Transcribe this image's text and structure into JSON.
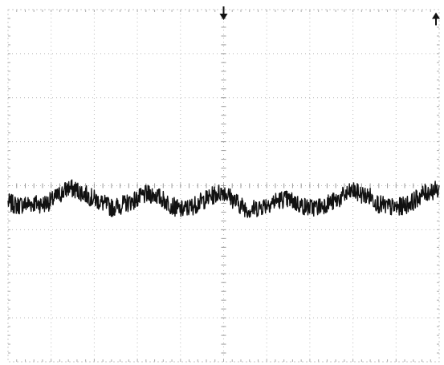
{
  "chart_data": {
    "type": "line",
    "title": "",
    "xlabel": "",
    "ylabel": "",
    "grid": true,
    "grid_divisions": {
      "x": 10,
      "y": 8
    },
    "minor_ticks_per_division": 5,
    "xlim": [
      0,
      10
    ],
    "ylim": [
      -4,
      4
    ],
    "markers": [
      {
        "kind": "trigger-position",
        "shape": "down-arrow",
        "x": 5.0
      },
      {
        "kind": "trigger-level",
        "shape": "up-arrow",
        "edge": "right",
        "y": 3.9
      }
    ],
    "series": [
      {
        "values_x": [
          0.0,
          0.2,
          0.4,
          0.6,
          0.8,
          1.0,
          1.2,
          1.4,
          1.6,
          1.8,
          2.0,
          2.2,
          2.4,
          2.6,
          2.8,
          3.0,
          3.2,
          3.4,
          3.6,
          3.8,
          4.0,
          4.2,
          4.4,
          4.6,
          4.8,
          5.0,
          5.2,
          5.4,
          5.6,
          5.8,
          6.0,
          6.2,
          6.4,
          6.6,
          6.8,
          7.0,
          7.2,
          7.4,
          7.6,
          7.8,
          8.0,
          8.2,
          8.4,
          8.6,
          8.8,
          9.0,
          9.2,
          9.4,
          9.6,
          9.8,
          10.0
        ],
        "values_y": [
          -0.38,
          -0.45,
          -0.42,
          -0.4,
          -0.42,
          -0.35,
          -0.2,
          -0.05,
          -0.1,
          -0.2,
          -0.3,
          -0.4,
          -0.5,
          -0.45,
          -0.38,
          -0.3,
          -0.2,
          -0.2,
          -0.32,
          -0.45,
          -0.55,
          -0.5,
          -0.4,
          -0.3,
          -0.2,
          -0.12,
          -0.3,
          -0.45,
          -0.55,
          -0.5,
          -0.42,
          -0.35,
          -0.3,
          -0.35,
          -0.45,
          -0.5,
          -0.48,
          -0.4,
          -0.35,
          -0.22,
          -0.12,
          -0.2,
          -0.25,
          -0.42,
          -0.48,
          -0.5,
          -0.45,
          -0.35,
          -0.2,
          -0.12,
          -0.1
        ]
      }
    ]
  }
}
